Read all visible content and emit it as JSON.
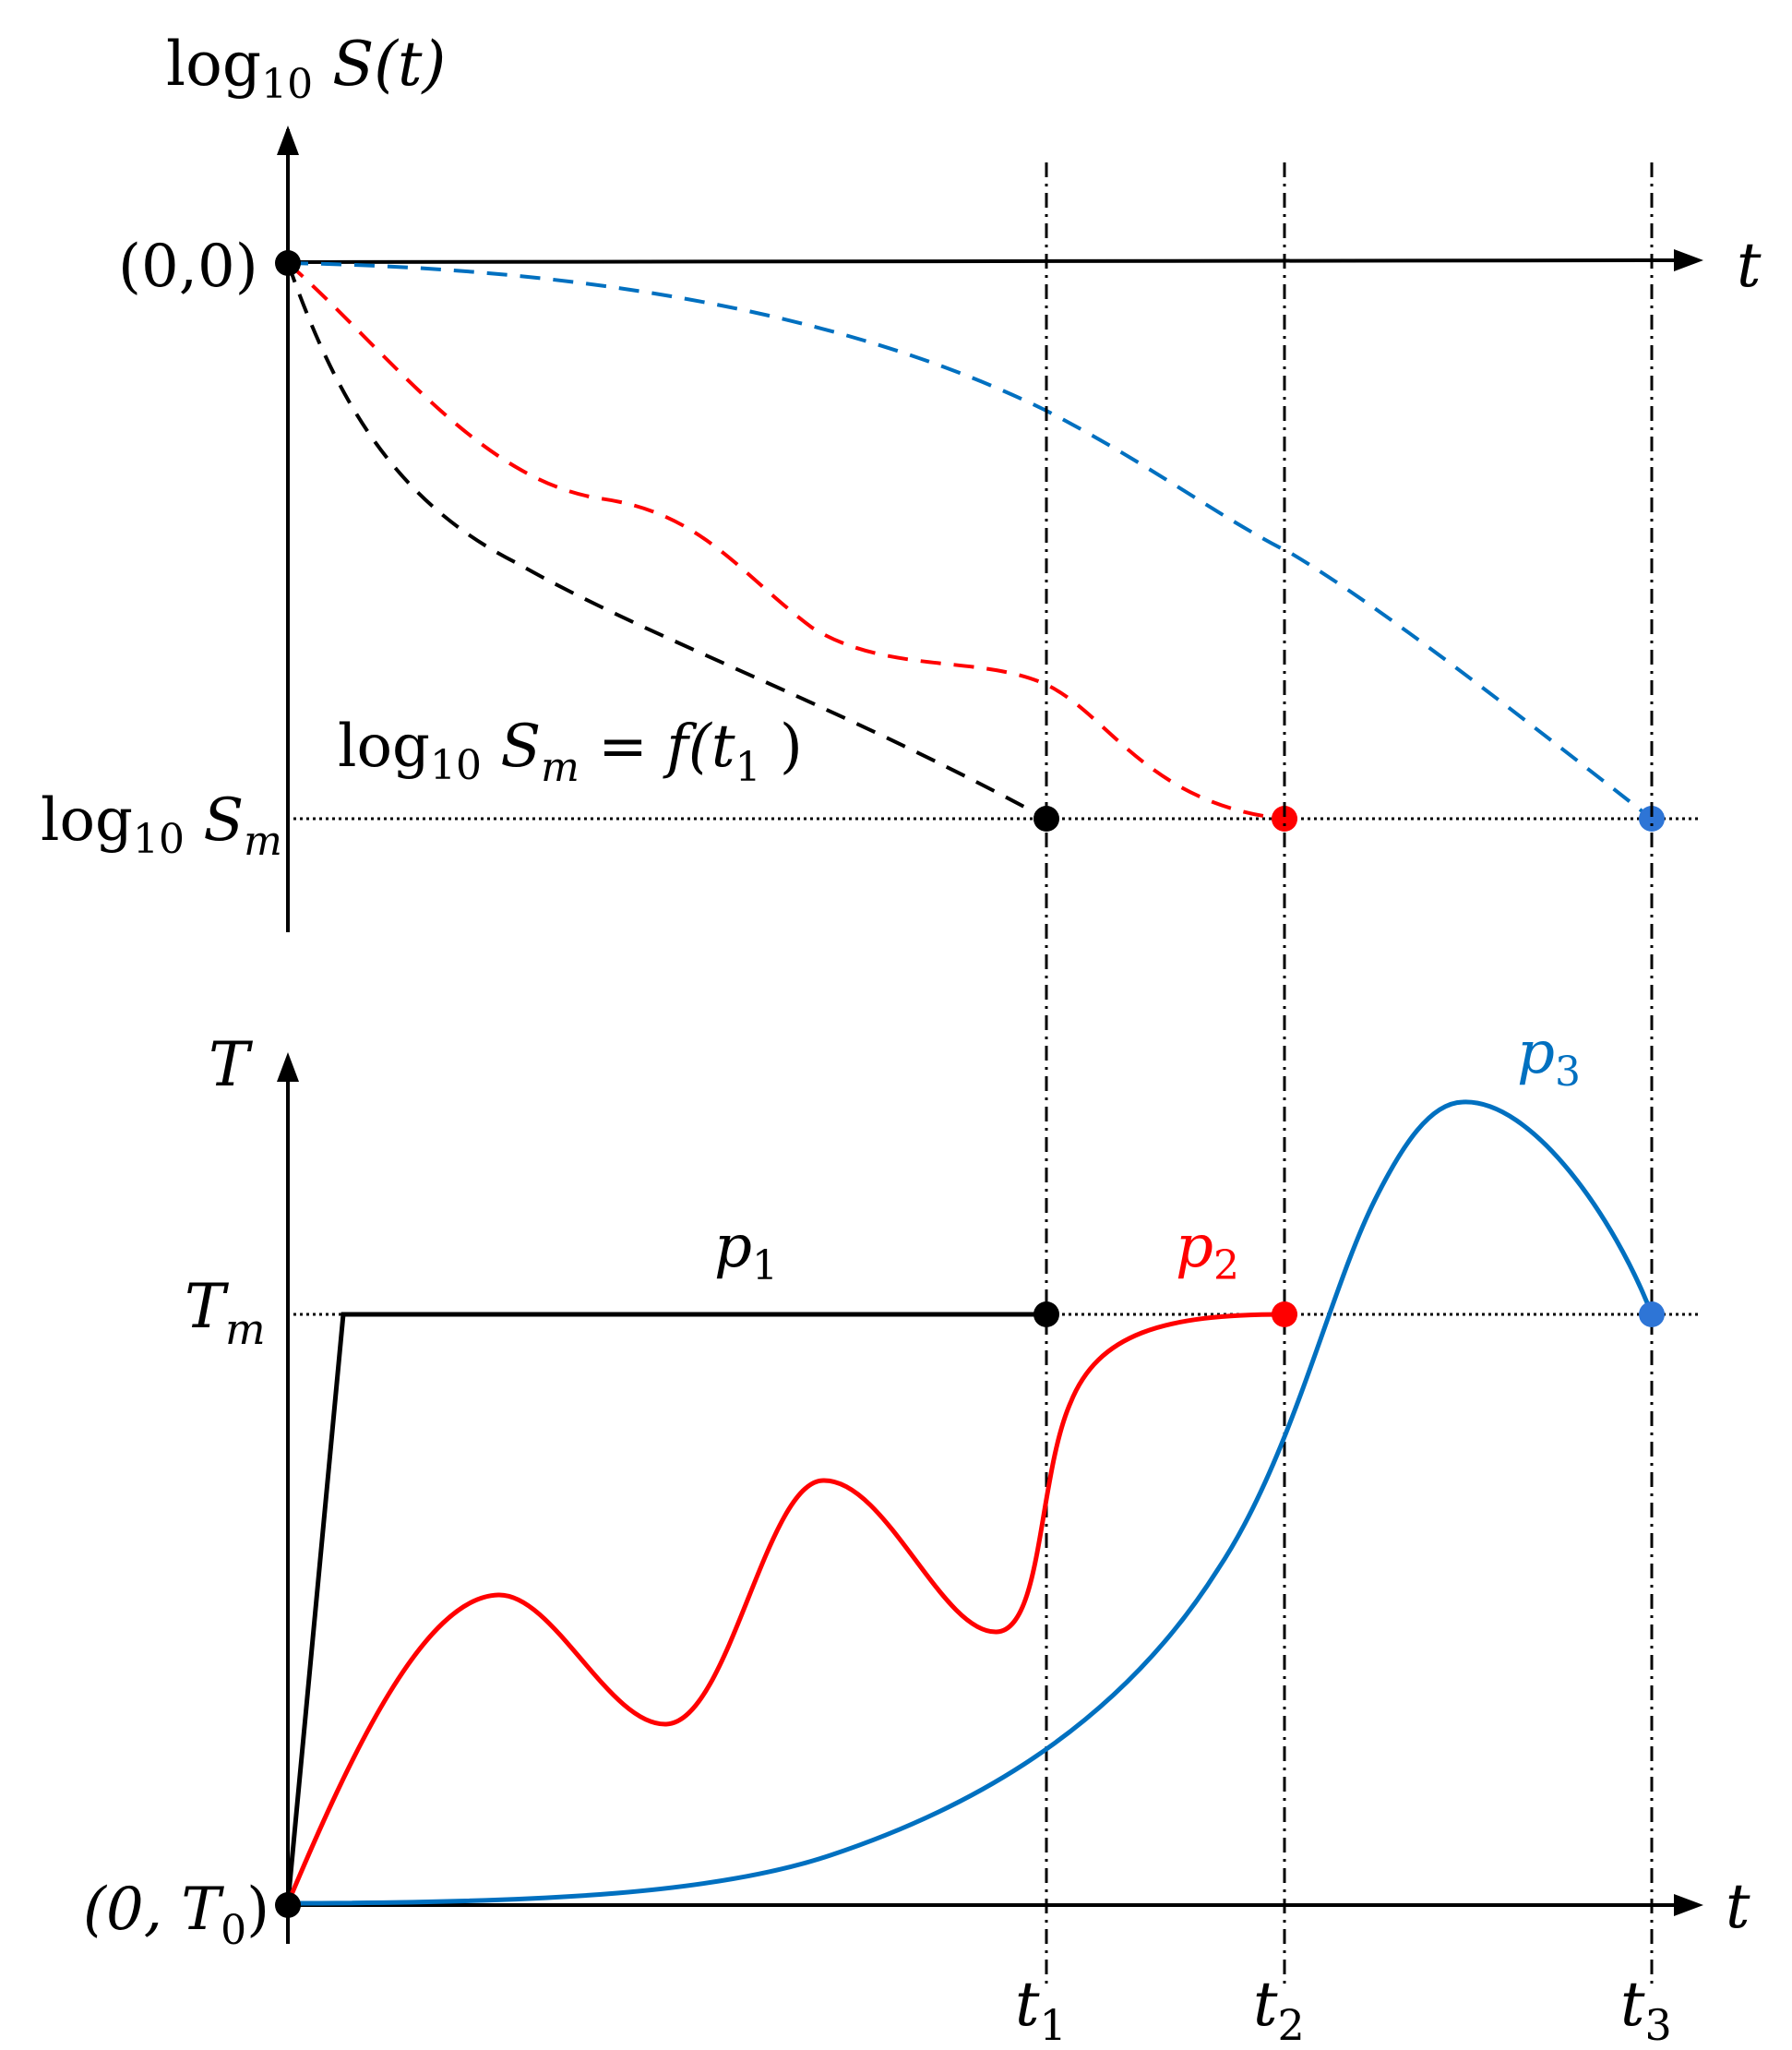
{
  "top": {
    "y_axis_label": {
      "pre": "log",
      "sub": "10",
      "post": " S(t)"
    },
    "origin_label": "(0,0)",
    "x_axis_label": "t",
    "sm_label": {
      "pre": "log",
      "sub": "10",
      "s": " S",
      "ssub": "m"
    },
    "equation": {
      "pre": "log",
      "sub": "10",
      "s": " S",
      "ssub": "m",
      "eq": " = f(t",
      "tsub": "1",
      "close": " )"
    }
  },
  "bottom": {
    "y_axis_label": "T",
    "tm_label": {
      "main": "T",
      "sub": "m"
    },
    "origin_label": {
      "pre": "(0, T",
      "sub": "0",
      "post": ")"
    },
    "x_axis_label": "t",
    "p1": {
      "main": "p",
      "sub": "1"
    },
    "p2": {
      "main": "p",
      "sub": "2"
    },
    "p3": {
      "main": "p",
      "sub": "3"
    }
  },
  "ticks": [
    {
      "main": "t",
      "sub": "1"
    },
    {
      "main": "t",
      "sub": "2"
    },
    {
      "main": "t",
      "sub": "3"
    }
  ],
  "colors": {
    "black": "#000000",
    "red": "#ff0000",
    "blue": "#0070c0",
    "blue_marker": "#2e75d6"
  }
}
